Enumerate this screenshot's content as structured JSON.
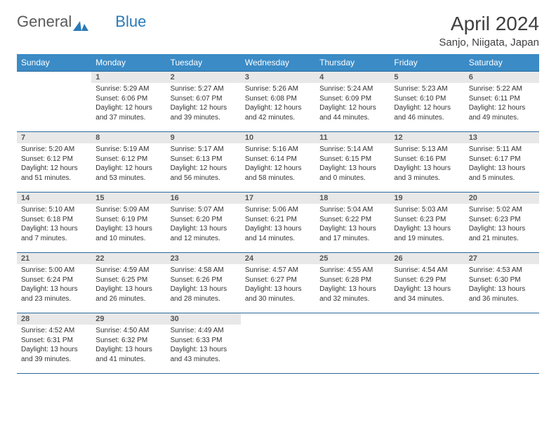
{
  "logo": {
    "text1": "General",
    "text2": "Blue"
  },
  "title": "April 2024",
  "location": "Sanjo, Niigata, Japan",
  "colors": {
    "header_bg": "#3b8bc6",
    "header_text": "#ffffff",
    "daynum_bg": "#e8e8e8",
    "border": "#2a6a9e",
    "logo_gray": "#5a5a5a",
    "logo_blue": "#2a7ab8",
    "title_color": "#404040"
  },
  "day_headers": [
    "Sunday",
    "Monday",
    "Tuesday",
    "Wednesday",
    "Thursday",
    "Friday",
    "Saturday"
  ],
  "weeks": [
    [
      {
        "day": "",
        "lines": []
      },
      {
        "day": "1",
        "lines": [
          "Sunrise: 5:29 AM",
          "Sunset: 6:06 PM",
          "Daylight: 12 hours",
          "and 37 minutes."
        ]
      },
      {
        "day": "2",
        "lines": [
          "Sunrise: 5:27 AM",
          "Sunset: 6:07 PM",
          "Daylight: 12 hours",
          "and 39 minutes."
        ]
      },
      {
        "day": "3",
        "lines": [
          "Sunrise: 5:26 AM",
          "Sunset: 6:08 PM",
          "Daylight: 12 hours",
          "and 42 minutes."
        ]
      },
      {
        "day": "4",
        "lines": [
          "Sunrise: 5:24 AM",
          "Sunset: 6:09 PM",
          "Daylight: 12 hours",
          "and 44 minutes."
        ]
      },
      {
        "day": "5",
        "lines": [
          "Sunrise: 5:23 AM",
          "Sunset: 6:10 PM",
          "Daylight: 12 hours",
          "and 46 minutes."
        ]
      },
      {
        "day": "6",
        "lines": [
          "Sunrise: 5:22 AM",
          "Sunset: 6:11 PM",
          "Daylight: 12 hours",
          "and 49 minutes."
        ]
      }
    ],
    [
      {
        "day": "7",
        "lines": [
          "Sunrise: 5:20 AM",
          "Sunset: 6:12 PM",
          "Daylight: 12 hours",
          "and 51 minutes."
        ]
      },
      {
        "day": "8",
        "lines": [
          "Sunrise: 5:19 AM",
          "Sunset: 6:12 PM",
          "Daylight: 12 hours",
          "and 53 minutes."
        ]
      },
      {
        "day": "9",
        "lines": [
          "Sunrise: 5:17 AM",
          "Sunset: 6:13 PM",
          "Daylight: 12 hours",
          "and 56 minutes."
        ]
      },
      {
        "day": "10",
        "lines": [
          "Sunrise: 5:16 AM",
          "Sunset: 6:14 PM",
          "Daylight: 12 hours",
          "and 58 minutes."
        ]
      },
      {
        "day": "11",
        "lines": [
          "Sunrise: 5:14 AM",
          "Sunset: 6:15 PM",
          "Daylight: 13 hours",
          "and 0 minutes."
        ]
      },
      {
        "day": "12",
        "lines": [
          "Sunrise: 5:13 AM",
          "Sunset: 6:16 PM",
          "Daylight: 13 hours",
          "and 3 minutes."
        ]
      },
      {
        "day": "13",
        "lines": [
          "Sunrise: 5:11 AM",
          "Sunset: 6:17 PM",
          "Daylight: 13 hours",
          "and 5 minutes."
        ]
      }
    ],
    [
      {
        "day": "14",
        "lines": [
          "Sunrise: 5:10 AM",
          "Sunset: 6:18 PM",
          "Daylight: 13 hours",
          "and 7 minutes."
        ]
      },
      {
        "day": "15",
        "lines": [
          "Sunrise: 5:09 AM",
          "Sunset: 6:19 PM",
          "Daylight: 13 hours",
          "and 10 minutes."
        ]
      },
      {
        "day": "16",
        "lines": [
          "Sunrise: 5:07 AM",
          "Sunset: 6:20 PM",
          "Daylight: 13 hours",
          "and 12 minutes."
        ]
      },
      {
        "day": "17",
        "lines": [
          "Sunrise: 5:06 AM",
          "Sunset: 6:21 PM",
          "Daylight: 13 hours",
          "and 14 minutes."
        ]
      },
      {
        "day": "18",
        "lines": [
          "Sunrise: 5:04 AM",
          "Sunset: 6:22 PM",
          "Daylight: 13 hours",
          "and 17 minutes."
        ]
      },
      {
        "day": "19",
        "lines": [
          "Sunrise: 5:03 AM",
          "Sunset: 6:23 PM",
          "Daylight: 13 hours",
          "and 19 minutes."
        ]
      },
      {
        "day": "20",
        "lines": [
          "Sunrise: 5:02 AM",
          "Sunset: 6:23 PM",
          "Daylight: 13 hours",
          "and 21 minutes."
        ]
      }
    ],
    [
      {
        "day": "21",
        "lines": [
          "Sunrise: 5:00 AM",
          "Sunset: 6:24 PM",
          "Daylight: 13 hours",
          "and 23 minutes."
        ]
      },
      {
        "day": "22",
        "lines": [
          "Sunrise: 4:59 AM",
          "Sunset: 6:25 PM",
          "Daylight: 13 hours",
          "and 26 minutes."
        ]
      },
      {
        "day": "23",
        "lines": [
          "Sunrise: 4:58 AM",
          "Sunset: 6:26 PM",
          "Daylight: 13 hours",
          "and 28 minutes."
        ]
      },
      {
        "day": "24",
        "lines": [
          "Sunrise: 4:57 AM",
          "Sunset: 6:27 PM",
          "Daylight: 13 hours",
          "and 30 minutes."
        ]
      },
      {
        "day": "25",
        "lines": [
          "Sunrise: 4:55 AM",
          "Sunset: 6:28 PM",
          "Daylight: 13 hours",
          "and 32 minutes."
        ]
      },
      {
        "day": "26",
        "lines": [
          "Sunrise: 4:54 AM",
          "Sunset: 6:29 PM",
          "Daylight: 13 hours",
          "and 34 minutes."
        ]
      },
      {
        "day": "27",
        "lines": [
          "Sunrise: 4:53 AM",
          "Sunset: 6:30 PM",
          "Daylight: 13 hours",
          "and 36 minutes."
        ]
      }
    ],
    [
      {
        "day": "28",
        "lines": [
          "Sunrise: 4:52 AM",
          "Sunset: 6:31 PM",
          "Daylight: 13 hours",
          "and 39 minutes."
        ]
      },
      {
        "day": "29",
        "lines": [
          "Sunrise: 4:50 AM",
          "Sunset: 6:32 PM",
          "Daylight: 13 hours",
          "and 41 minutes."
        ]
      },
      {
        "day": "30",
        "lines": [
          "Sunrise: 4:49 AM",
          "Sunset: 6:33 PM",
          "Daylight: 13 hours",
          "and 43 minutes."
        ]
      },
      {
        "day": "",
        "lines": []
      },
      {
        "day": "",
        "lines": []
      },
      {
        "day": "",
        "lines": []
      },
      {
        "day": "",
        "lines": []
      }
    ]
  ]
}
